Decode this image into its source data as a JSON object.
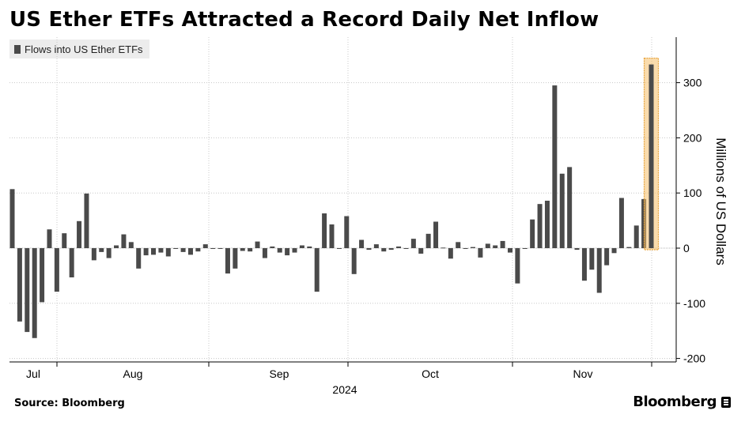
{
  "title": "US Ether ETFs Attracted a Record Daily Net Inflow",
  "source": "Source: Bloomberg",
  "brand": "Bloomberg",
  "colors": {
    "bar": "#4a4a4a",
    "highlight_fill": "#f5c06a",
    "highlight_border": "#e8a33a"
  },
  "chart_data": {
    "type": "bar",
    "legend": [
      "Flows into US Ether ETFs"
    ],
    "ylabel": "Millions of US Dollars",
    "ylim": [
      -210,
      380
    ],
    "yticks": [
      -200,
      -100,
      0,
      100,
      200,
      300
    ],
    "grid": true,
    "legend_position": "top-left",
    "xlabel": "2024",
    "month_labels": [
      "Jul",
      "Aug",
      "Sep",
      "Oct",
      "Nov"
    ],
    "series": [
      {
        "values": [
          107,
          -133,
          -152,
          -163,
          -98,
          34,
          -79,
          27,
          -53,
          49,
          99,
          -22,
          -7,
          -18,
          5,
          25,
          11,
          -37,
          -13,
          -12,
          -8,
          -15,
          -1,
          -7,
          -12,
          -6,
          7,
          -1,
          -1,
          -46,
          -37,
          -5,
          -6,
          12,
          -18,
          3,
          -8,
          -13,
          -8,
          5,
          3,
          -79,
          63,
          43,
          0,
          58,
          -47,
          15,
          -3,
          7,
          -6,
          -3,
          3,
          0,
          17,
          -10,
          26,
          48,
          1,
          -19,
          11,
          0,
          2,
          -17,
          8,
          5,
          13,
          -8,
          -64,
          0,
          52,
          80,
          86,
          295,
          135,
          147,
          -3,
          -59,
          -39,
          -81,
          -31,
          -9,
          91,
          2,
          41,
          89,
          333
        ]
      }
    ],
    "highlight": "last bar (record daily net inflow)"
  }
}
